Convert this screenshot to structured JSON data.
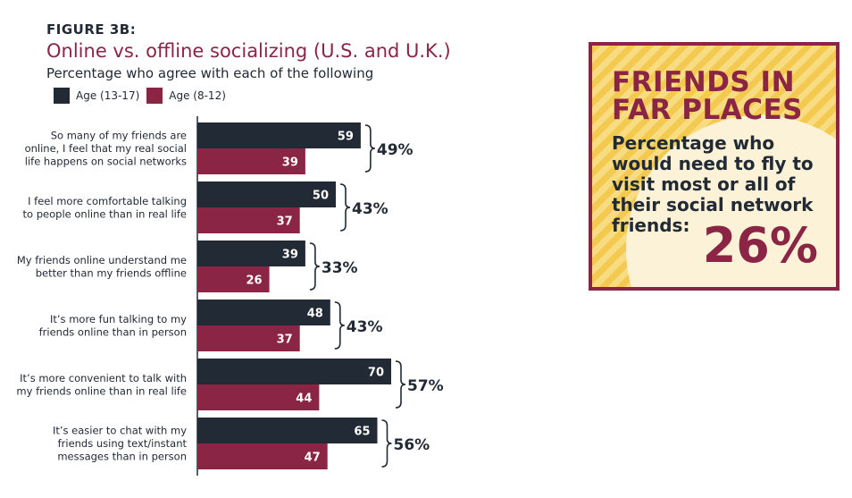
{
  "figure_label": "FIGURE 3B:",
  "title": "Online vs. offline socializing (U.S. and U.K.)",
  "subtitle": "Percentage who agree with each of the following",
  "colors": {
    "teen": "#222a35",
    "tween": "#8b2545",
    "accent": "#8b2545",
    "panel_stripe": "#f3c94f"
  },
  "chart_data": {
    "type": "bar",
    "orientation": "horizontal",
    "categories": [
      [
        "So many of my friends are",
        "online, I feel that my real social",
        "life happens on social networks"
      ],
      [
        "I feel more comfortable talking",
        "to people online than in real life"
      ],
      [
        "My friends online understand me",
        "better than my friends offline"
      ],
      [
        "It’s more fun talking to my",
        "friends online than in person"
      ],
      [
        "It’s more convenient to talk with",
        "my friends online than in real life"
      ],
      [
        "It’s easier to chat with my",
        "friends using text/instant",
        "messages than in person"
      ]
    ],
    "series": [
      {
        "name": "Age (13-17)",
        "values": [
          59,
          50,
          39,
          48,
          70,
          65
        ]
      },
      {
        "name": "Age (8-12)",
        "values": [
          39,
          37,
          26,
          37,
          44,
          47
        ]
      }
    ],
    "totals": [
      "49%",
      "43%",
      "33%",
      "43%",
      "57%",
      "56%"
    ],
    "xlim": [
      0,
      100
    ],
    "legend_position": "top-left",
    "grid": false
  },
  "panel": {
    "headline_line1": "FRIENDS IN",
    "headline_line2": "FAR PLACES",
    "description": "Percentage who would need to fly to visit most or all of their social network friends:",
    "value": "26%"
  }
}
